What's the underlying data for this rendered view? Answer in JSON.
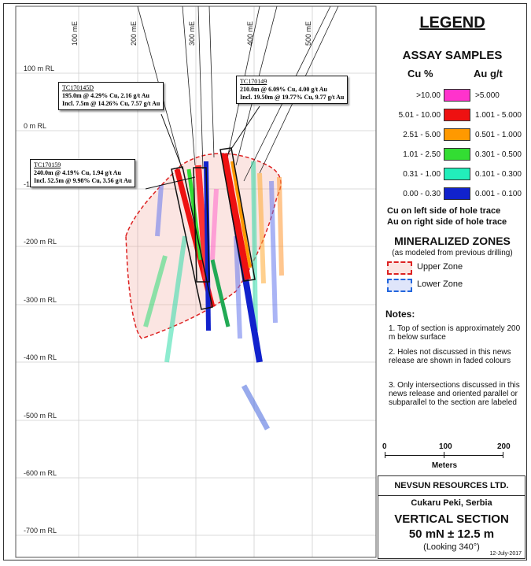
{
  "grid": {
    "easting_labels": [
      "100 mE",
      "200 mE",
      "300 mE",
      "400 mE",
      "500 mE"
    ],
    "rl_labels": [
      "100 m RL",
      "0 m RL",
      "-100 m RL",
      "-200 m RL",
      "-300 m RL",
      "-400 m RL",
      "-500 m RL",
      "-600 m RL",
      "-700 m RL"
    ]
  },
  "callouts": [
    {
      "hole": "TC170145D",
      "line1": "195.0m @ 4.29% Cu, 2.16 g/t Au",
      "line2": "Incl. 7.5m @ 14.26% Cu, 7.57 g/t Au"
    },
    {
      "hole": "TC170149",
      "line1": "210.0m @ 6.09% Cu, 4.00 g/t Au",
      "line2": "Incl. 19.50m @ 19.77% Cu, 9.77 g/t Au"
    },
    {
      "hole": "TC170159",
      "line1": "240.0m @ 4.19% Cu, 1.94 g/t Au",
      "line2": "Incl. 52.5m @ 9.98% Cu, 3.56 g/t Au"
    }
  ],
  "legend": {
    "title": "LEGEND",
    "assay_title": "ASSAY SAMPLES",
    "cu_header": "Cu %",
    "au_header": "Au g/t",
    "rows": [
      {
        "cu": ">10.00",
        "au": ">5.000",
        "color": "#ff33cc"
      },
      {
        "cu": "5.01 - 10.00",
        "au": "1.001 - 5.000",
        "color": "#ee1111"
      },
      {
        "cu": "2.51 - 5.00",
        "au": "0.501 - 1.000",
        "color": "#ff9900"
      },
      {
        "cu": "1.01 - 2.50",
        "au": "0.301 - 0.500",
        "color": "#33dd33"
      },
      {
        "cu": "0.31 - 1.00",
        "au": "0.101 - 0.300",
        "color": "#22eebb"
      },
      {
        "cu": "0.00 - 0.30",
        "au": "0.001 - 0.100",
        "color": "#1122cc"
      }
    ],
    "side_note_1": "Cu on left side of hole trace",
    "side_note_2": "Au on right side of hole trace",
    "zones_title": "MINERALIZED ZONES",
    "zones_sub": "(as modeled from previous drilling)",
    "upper_zone": "Upper Zone",
    "lower_zone": "Lower Zone",
    "notes_title": "Notes:",
    "notes": [
      "1. Top of section is approximately 200 m below surface",
      "2. Holes not discussed in this news release are shown in faded colours",
      "3. Only intersections discussed in this news release and oriented parallel or subparallel to the section are labeled"
    ],
    "scale": {
      "ticks": [
        "0",
        "100",
        "200"
      ],
      "unit": "Meters"
    },
    "company": "NEVSUN RESOURCES LTD.",
    "location": "Cukaru Peki, Serbia",
    "section_title": "VERTICAL SECTION",
    "section_sub": "50 mN ± 12.5 m",
    "looking": "(Looking 340°)",
    "date": "12-July-2017"
  }
}
